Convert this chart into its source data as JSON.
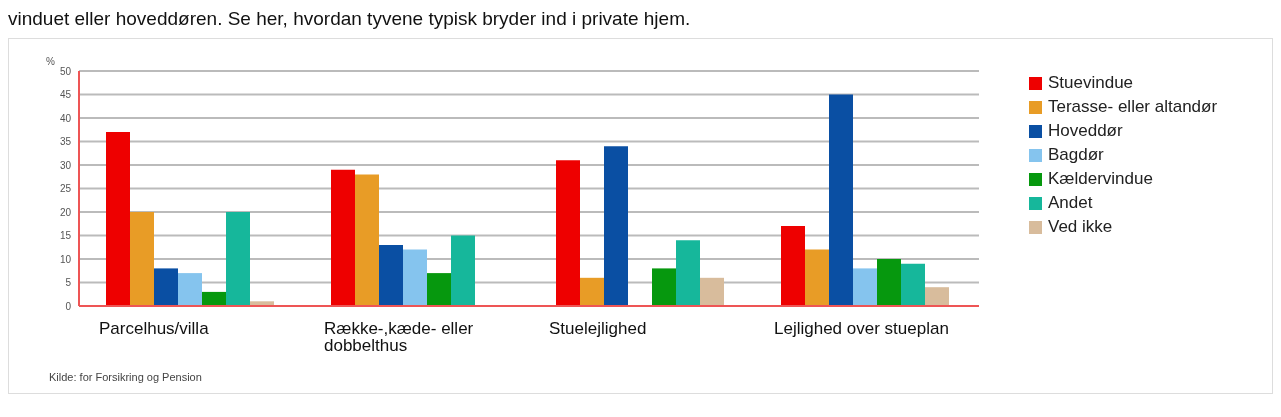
{
  "chart_data": {
    "type": "bar",
    "title": "vinduet eller hoveddøren. Se her, hvordan tyvene typisk bryder ind i private hjem.",
    "ylabel": "%",
    "categories": [
      "Parcelhus/villa",
      "Række-,kæde- eller dobbelthus",
      "Stuelejlighed",
      "Lejlighed over stueplan"
    ],
    "series": [
      {
        "name": "Stuevindue",
        "color": "#ee0000",
        "values": [
          37,
          29,
          31,
          17
        ]
      },
      {
        "name": "Terasse- eller altandør",
        "color": "#e89c26",
        "values": [
          20,
          28,
          6,
          12
        ]
      },
      {
        "name": "Hoveddør",
        "color": "#0a4fa3",
        "values": [
          8,
          13,
          34,
          45
        ]
      },
      {
        "name": "Bagdør",
        "color": "#85c4ee",
        "values": [
          7,
          12,
          null,
          8
        ]
      },
      {
        "name": "Kældervindue",
        "color": "#06980e",
        "values": [
          3,
          7,
          8,
          10
        ]
      },
      {
        "name": "Andet",
        "color": "#16b79b",
        "values": [
          20,
          15,
          14,
          9
        ]
      },
      {
        "name": "Ved ikke",
        "color": "#d8bc9c",
        "values": [
          1,
          null,
          6,
          4
        ]
      }
    ],
    "ylim": [
      0,
      50
    ],
    "yticks": [
      0,
      5,
      10,
      15,
      20,
      25,
      30,
      35,
      40,
      45,
      50
    ],
    "grid": "y",
    "legend": "right",
    "annotations": [
      "Kilde: for Forsikring og Pension"
    ]
  }
}
